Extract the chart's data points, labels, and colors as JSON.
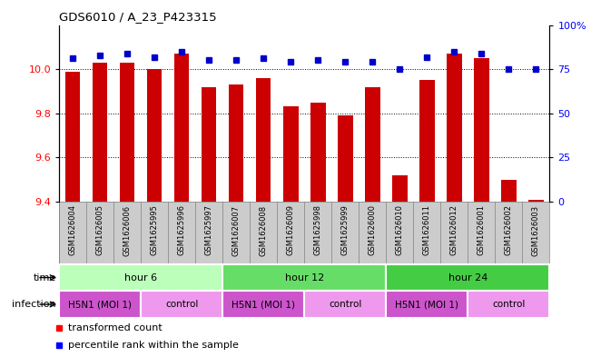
{
  "title": "GDS6010 / A_23_P423315",
  "samples": [
    "GSM1626004",
    "GSM1626005",
    "GSM1626006",
    "GSM1625995",
    "GSM1625996",
    "GSM1625997",
    "GSM1626007",
    "GSM1626008",
    "GSM1626009",
    "GSM1625998",
    "GSM1625999",
    "GSM1626000",
    "GSM1626010",
    "GSM1626011",
    "GSM1626012",
    "GSM1626001",
    "GSM1626002",
    "GSM1626003"
  ],
  "bar_values": [
    9.99,
    10.03,
    10.03,
    10.0,
    10.07,
    9.92,
    9.93,
    9.96,
    9.83,
    9.85,
    9.79,
    9.92,
    9.52,
    9.95,
    10.07,
    10.05,
    9.5,
    9.41
  ],
  "dot_values": [
    81,
    83,
    84,
    82,
    85,
    80,
    80,
    81,
    79,
    80,
    79,
    79,
    75,
    82,
    85,
    84,
    75,
    75
  ],
  "ylim_left": [
    9.4,
    10.2
  ],
  "ylim_right": [
    0,
    100
  ],
  "yticks_left": [
    9.4,
    9.6,
    9.8,
    10.0
  ],
  "yticks_right": [
    0,
    25,
    50,
    75,
    100
  ],
  "bar_color": "#cc0000",
  "dot_color": "#0000cc",
  "grid_color": "#000000",
  "time_row": {
    "label": "time",
    "groups": [
      {
        "label": "hour 6",
        "start": 0,
        "end": 6,
        "color": "#bbffbb"
      },
      {
        "label": "hour 12",
        "start": 6,
        "end": 12,
        "color": "#66dd66"
      },
      {
        "label": "hour 24",
        "start": 12,
        "end": 18,
        "color": "#44cc44"
      }
    ]
  },
  "infection_row": {
    "label": "infection",
    "groups": [
      {
        "label": "H5N1 (MOI 1)",
        "start": 0,
        "end": 3,
        "color": "#cc55cc"
      },
      {
        "label": "control",
        "start": 3,
        "end": 6,
        "color": "#ee99ee"
      },
      {
        "label": "H5N1 (MOI 1)",
        "start": 6,
        "end": 9,
        "color": "#cc55cc"
      },
      {
        "label": "control",
        "start": 9,
        "end": 12,
        "color": "#ee99ee"
      },
      {
        "label": "H5N1 (MOI 1)",
        "start": 12,
        "end": 15,
        "color": "#cc55cc"
      },
      {
        "label": "control",
        "start": 15,
        "end": 18,
        "color": "#ee99ee"
      }
    ]
  },
  "n_samples": 18,
  "sample_label_bg": "#cccccc",
  "fig_width": 6.51,
  "fig_height": 3.93,
  "dpi": 100
}
